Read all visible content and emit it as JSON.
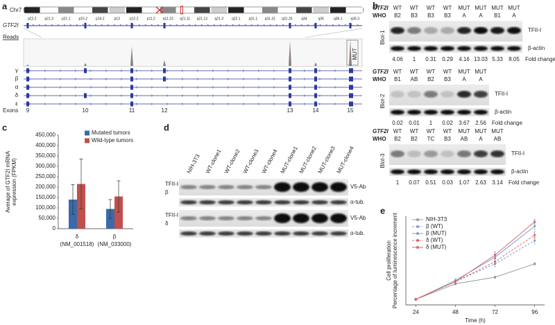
{
  "panel_labels": [
    "a",
    "b",
    "c",
    "d",
    "e"
  ],
  "panel_a": {
    "chromosome": "Chr7",
    "bands": [
      "p22.2",
      "p21.3",
      "p21.1",
      "p15.2",
      "p14.2",
      "p13",
      "p12.2",
      "p11.2",
      "q11.23",
      "q21.11",
      "q21.13",
      "q21.3",
      "q22.1",
      "q31.1",
      "q31.31",
      "q31.33",
      "q34",
      "q35",
      "q36.1",
      "q36.3"
    ],
    "gene": "GTF2I",
    "reads_label": "Reads",
    "mutation_label": "MUT",
    "isoforms": [
      "γ",
      "β",
      "α",
      "δ",
      "ε"
    ],
    "exons_label": "Exons",
    "exons": [
      {
        "number": "9",
        "color": "#222222"
      },
      {
        "number": "10",
        "color": "#d0302a"
      },
      {
        "number": "11",
        "color": "#222222"
      },
      {
        "number": "12",
        "color": "#d0302a"
      },
      {
        "number": "13",
        "color": "#222222"
      },
      {
        "number": "14",
        "color": "#222222"
      },
      {
        "number": "15",
        "color": "#222222"
      }
    ]
  },
  "panel_b": {
    "gene_label": "GTF2I",
    "who_label": "WHO",
    "protein": "TFII-I",
    "control": "β-actin",
    "fold_label": "Fold change",
    "blots": [
      {
        "name": "Blot-1",
        "status": [
          "WT",
          "WT",
          "WT",
          "WT",
          "MUT",
          "MUT",
          "MUT",
          "MUT"
        ],
        "who": [
          "B2",
          "B3",
          "B3",
          "B3",
          "A",
          "A",
          "B1",
          "A"
        ],
        "fold_change": [
          4.06,
          1,
          0.31,
          0.29,
          4.16,
          13.03,
          5.33,
          8.05
        ]
      },
      {
        "name": "Blot-2",
        "status": [
          "WT",
          "WT",
          "WT",
          "WT",
          "MUT",
          "MUT"
        ],
        "who": [
          "B1",
          "AB",
          "B2",
          "B3",
          "A",
          "A"
        ],
        "fold_change": [
          0.02,
          0.01,
          1,
          0.02,
          3.67,
          2.56
        ]
      },
      {
        "name": "Blot-3",
        "status": [
          "WT",
          "WT",
          "WT",
          "WT",
          "MUT",
          "MUT",
          "MUT"
        ],
        "who": [
          "B2",
          "B2",
          "TC",
          "B3",
          "AB",
          "A",
          "AB"
        ],
        "fold_change": [
          1,
          0.07,
          0.51,
          0.03,
          1.07,
          2.63,
          3.14
        ]
      }
    ]
  },
  "panel_d": {
    "lanes": [
      "NIH-3T3",
      "WT-clone1",
      "WT-clone2",
      "WT-clone3",
      "WT-clone4",
      "MUT-clone1",
      "MUT-clone2",
      "MUT-clone3",
      "MUT-clone4"
    ],
    "blots": [
      {
        "protein": "TFII-I",
        "isoform": "β",
        "antibody": "V5-Ab",
        "loading": "α-tub."
      },
      {
        "protein": "TFII-I",
        "isoform": "δ",
        "antibody": "V5-Ab",
        "loading": "α-tub."
      }
    ]
  },
  "chart_data": [
    {
      "type": "bar",
      "ylabel": [
        "Average of GTF2I mRNA",
        "expression (FPKM)"
      ],
      "categories": [
        "δ",
        "β"
      ],
      "category_sublabels": [
        "(NM_001518)",
        "(NM_033000)"
      ],
      "series": [
        {
          "name": "Mutated tumors",
          "color": "#3a6aa8",
          "values": [
            140000,
            95000
          ],
          "errors": [
            72000,
            45000
          ]
        },
        {
          "name": "Wild-type tumors",
          "color": "#c0504d",
          "values": [
            215000,
            155000
          ],
          "errors": [
            120000,
            75000
          ]
        }
      ],
      "ylim": [
        0,
        450000
      ],
      "yticks": [
        0,
        {
          "value": 50000,
          "label": "50,000"
        },
        {
          "value": 100000,
          "label": "100,000"
        },
        {
          "value": 150000,
          "label": "150,000"
        },
        {
          "value": 200000,
          "label": "200,000"
        },
        {
          "value": 250000,
          "label": "250,000"
        },
        {
          "value": 300000,
          "label": "300,000"
        },
        {
          "value": 350000,
          "label": "350,000"
        },
        {
          "value": 400000,
          "label": "400,000"
        },
        {
          "value": 450000,
          "label": "450,000"
        }
      ],
      "legend": "top-right"
    },
    {
      "type": "line",
      "xlabel": "Time (h)",
      "ylabel": [
        "Cell proliferation",
        "Percentage of luminescence increment"
      ],
      "x": [
        24,
        48,
        72,
        96
      ],
      "xlim": [
        18,
        102
      ],
      "xticks": [
        24,
        48,
        72,
        96
      ],
      "ylim": [
        0.5,
        8.5
      ],
      "legend": "top-left",
      "series": [
        {
          "name": "NIH-3T3",
          "color": "#9a9a9a",
          "dash": false,
          "values": [
            1,
            2.4,
            3,
            4.2
          ],
          "errors": [
            0.1,
            0.1,
            0.1,
            0.1
          ]
        },
        {
          "name": "β (WT)",
          "color": "#7f9fd6",
          "dash": true,
          "values": [
            1,
            2.6,
            4.2,
            6.3
          ],
          "errors": [
            0.1,
            0.15,
            0.25,
            0.3
          ]
        },
        {
          "name": "β (MUT)",
          "color": "#7f9fd6",
          "dash": false,
          "values": [
            1,
            2.7,
            4.8,
            7.6
          ],
          "errors": [
            0.1,
            0.15,
            0.3,
            0.3
          ]
        },
        {
          "name": "δ (WT)",
          "color": "#d46a6a",
          "dash": true,
          "values": [
            1,
            2.6,
            4.4,
            6.8
          ],
          "errors": [
            0.1,
            0.15,
            0.25,
            0.3
          ]
        },
        {
          "name": "δ (MUT)",
          "color": "#d46a6a",
          "dash": false,
          "values": [
            1,
            2.6,
            5,
            8
          ],
          "errors": [
            0.1,
            0.15,
            0.3,
            0.2
          ]
        }
      ]
    }
  ]
}
